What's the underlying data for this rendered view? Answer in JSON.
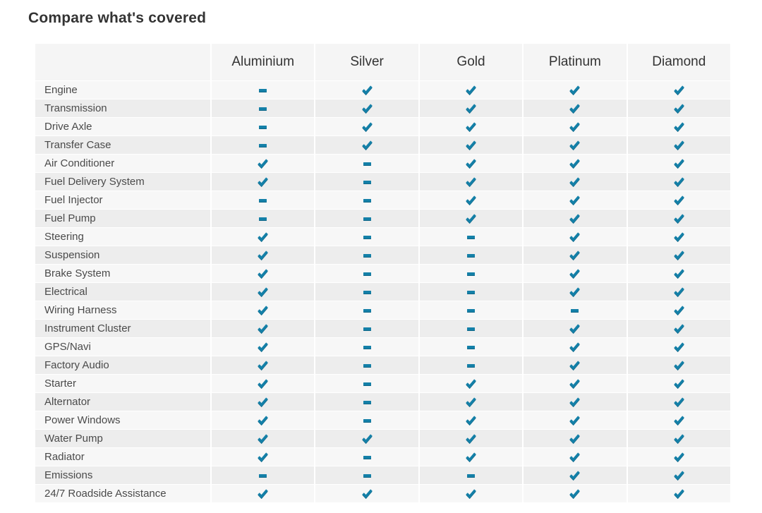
{
  "title": "Compare what's covered",
  "colors": {
    "accent": "#1480a8",
    "accent_dark": "#0e6788",
    "header_bg": "#f5f5f5",
    "row_odd_bg": "#f7f7f7",
    "row_even_bg": "#ededed",
    "title_text": "#333333",
    "label_text": "#4a4a4a"
  },
  "table": {
    "columns": [
      "Aluminium",
      "Silver",
      "Gold",
      "Platinum",
      "Diamond"
    ],
    "rows": [
      {
        "label": "Engine",
        "values": [
          "dash",
          "check",
          "check",
          "check",
          "check"
        ]
      },
      {
        "label": "Transmission",
        "values": [
          "dash",
          "check",
          "check",
          "check",
          "check"
        ]
      },
      {
        "label": "Drive Axle",
        "values": [
          "dash",
          "check",
          "check",
          "check",
          "check"
        ]
      },
      {
        "label": "Transfer Case",
        "values": [
          "dash",
          "check",
          "check",
          "check",
          "check"
        ]
      },
      {
        "label": "Air Conditioner",
        "values": [
          "check",
          "dash",
          "check",
          "check",
          "check"
        ]
      },
      {
        "label": "Fuel Delivery System",
        "values": [
          "check",
          "dash",
          "check",
          "check",
          "check"
        ]
      },
      {
        "label": "Fuel Injector",
        "values": [
          "dash",
          "dash",
          "check",
          "check",
          "check"
        ]
      },
      {
        "label": "Fuel Pump",
        "values": [
          "dash",
          "dash",
          "check",
          "check",
          "check"
        ]
      },
      {
        "label": "Steering",
        "values": [
          "check",
          "dash",
          "dash",
          "check",
          "check"
        ]
      },
      {
        "label": "Suspension",
        "values": [
          "check",
          "dash",
          "dash",
          "check",
          "check"
        ]
      },
      {
        "label": "Brake System",
        "values": [
          "check",
          "dash",
          "dash",
          "check",
          "check"
        ]
      },
      {
        "label": "Electrical",
        "values": [
          "check",
          "dash",
          "dash",
          "check",
          "check"
        ]
      },
      {
        "label": "Wiring Harness",
        "values": [
          "check",
          "dash",
          "dash",
          "dash",
          "check"
        ]
      },
      {
        "label": "Instrument Cluster",
        "values": [
          "check",
          "dash",
          "dash",
          "check",
          "check"
        ]
      },
      {
        "label": "GPS/Navi",
        "values": [
          "check",
          "dash",
          "dash",
          "check",
          "check"
        ]
      },
      {
        "label": "Factory Audio",
        "values": [
          "check",
          "dash",
          "dash",
          "check",
          "check"
        ]
      },
      {
        "label": "Starter",
        "values": [
          "check",
          "dash",
          "check",
          "check",
          "check"
        ]
      },
      {
        "label": "Alternator",
        "values": [
          "check",
          "dash",
          "check",
          "check",
          "check"
        ]
      },
      {
        "label": "Power Windows",
        "values": [
          "check",
          "dash",
          "check",
          "check",
          "check"
        ]
      },
      {
        "label": "Water Pump",
        "values": [
          "check",
          "check",
          "check",
          "check",
          "check"
        ]
      },
      {
        "label": "Radiator",
        "values": [
          "check",
          "dash",
          "check",
          "check",
          "check"
        ]
      },
      {
        "label": "Emissions",
        "values": [
          "dash",
          "dash",
          "dash",
          "check",
          "check"
        ]
      },
      {
        "label": "24/7 Roadside Assistance",
        "values": [
          "check",
          "check",
          "check",
          "check",
          "check"
        ]
      }
    ]
  }
}
